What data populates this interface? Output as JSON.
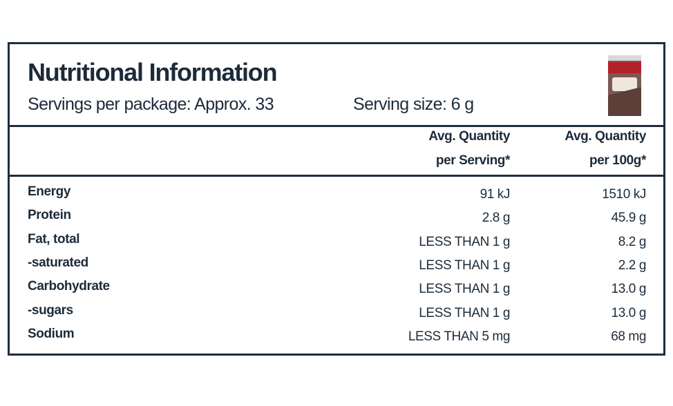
{
  "header": {
    "title": "Nutritional Information",
    "servings": "Servings per package: Approx. 33",
    "serving_size": "Serving size: 6 g"
  },
  "table": {
    "columns": [
      "",
      "Avg. Quantity",
      "Avg. Quantity"
    ],
    "column_sublabels": [
      "",
      "per Serving*",
      "per 100g*"
    ],
    "rows": [
      [
        "Energy",
        "91 kJ",
        "1510 kJ"
      ],
      [
        "Protein",
        "2.8 g",
        "45.9 g"
      ],
      [
        "Fat, total",
        "LESS THAN 1 g",
        "8.2 g"
      ],
      [
        "-saturated",
        "LESS THAN 1 g",
        "2.2 g"
      ],
      [
        "Carbohydrate",
        "LESS THAN 1 g",
        "13.0 g"
      ],
      [
        "-sugars",
        "LESS THAN 1 g",
        "13.0 g"
      ],
      [
        "Sodium",
        "LESS THAN 5 mg",
        "68 mg"
      ]
    ]
  }
}
